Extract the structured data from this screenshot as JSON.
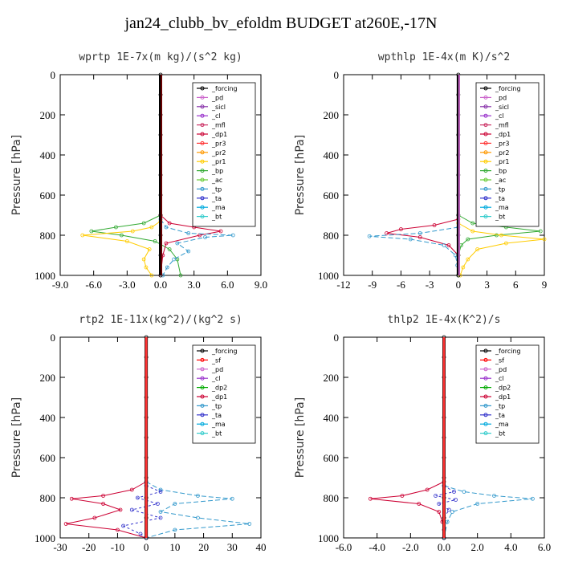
{
  "title": "jan24_clubb_bv_efoldm  BUDGET at260E,-17N",
  "colors": {
    "_forcing": "#000000",
    "_pd": "#cc66cc",
    "_sicl": "#8833aa",
    "_cl": "#9933cc",
    "_mfl": "#cc3366",
    "_dp1": "#cc0033",
    "_pr3": "#ff3333",
    "_pr2": "#ff9900",
    "_pr1": "#ffcc00",
    "_bp": "#33aa33",
    "_ac": "#66cc33",
    "_tp": "#3399cc",
    "_ta": "#3333cc",
    "_ma": "#00aadd",
    "_bt": "#33cccc",
    "_sf": "#ff0000",
    "_dp2": "#00aa00"
  },
  "chart_data": [
    {
      "type": "line",
      "title": "wprtp  1E-7x(m kg)/(s^2 kg)",
      "ylabel": "Pressure [hPa]",
      "xlim": [
        -9,
        9
      ],
      "ylim": [
        0,
        1000
      ],
      "y_inverted": true,
      "xticks": [
        "-9.0",
        "-6.0",
        "-3.0",
        "0.0",
        "3.0",
        "6.0",
        "9.0"
      ],
      "yticks": [
        "0",
        "200",
        "400",
        "600",
        "800",
        "1000"
      ],
      "legend": [
        "_forcing",
        "_pd",
        "_sicl",
        "_cl",
        "_mfl",
        "_dp1",
        "_pr3",
        "_pr2",
        "_pr1",
        "_bp",
        "_ac",
        "_tp",
        "_ta",
        "_ma",
        "_bt"
      ],
      "legend_position": "top-right",
      "series": [
        {
          "name": "_bp",
          "y": [
            700,
            740,
            760,
            780,
            800,
            830,
            870,
            920,
            1000
          ],
          "x": [
            0,
            -1.5,
            -4.0,
            -6.2,
            -3.5,
            -0.5,
            0.8,
            1.5,
            1.8
          ]
        },
        {
          "name": "_pr1",
          "y": [
            730,
            760,
            780,
            800,
            830,
            870,
            920,
            960,
            1000
          ],
          "x": [
            0,
            -0.8,
            -2.5,
            -7.0,
            -3.0,
            -1.0,
            -1.5,
            -1.3,
            -0.8
          ]
        },
        {
          "name": "_dp1",
          "y": [
            700,
            740,
            760,
            780,
            800,
            840,
            900,
            1000
          ],
          "x": [
            0,
            0.8,
            3.0,
            5.4,
            3.5,
            0.5,
            0.2,
            0
          ]
        },
        {
          "name": "_tp",
          "y": [
            720,
            760,
            790,
            800,
            810,
            840,
            880,
            920,
            960,
            1000
          ],
          "x": [
            0,
            0.5,
            2.5,
            6.5,
            4.0,
            1.5,
            2.5,
            1.2,
            0.6,
            0.2
          ]
        },
        {
          "name": "_forcing",
          "y": [
            0,
            100,
            200,
            300,
            400,
            500,
            600,
            700,
            800,
            900,
            1000
          ],
          "x": [
            0,
            0,
            0,
            0,
            0,
            0,
            0,
            0,
            0,
            0,
            0
          ]
        }
      ]
    },
    {
      "type": "line",
      "title": "wpthlp  1E-4x(m K)/s^2",
      "ylabel": "Pressure [hPa]",
      "xlim": [
        -12,
        9
      ],
      "ylim": [
        0,
        1000
      ],
      "y_inverted": true,
      "xticks": [
        "-12",
        "-9",
        "-6",
        "-3",
        "0",
        "3",
        "6",
        "9"
      ],
      "yticks": [
        "0",
        "200",
        "400",
        "600",
        "800",
        "1000"
      ],
      "legend": [
        "_forcing",
        "_pd",
        "_sicl",
        "_cl",
        "_mfl",
        "_dp1",
        "_pr3",
        "_pr2",
        "_pr1",
        "_bp",
        "_ac",
        "_tp",
        "_ta",
        "_ma",
        "_bt"
      ],
      "legend_position": "top-right",
      "series": [
        {
          "name": "_dp1",
          "y": [
            720,
            750,
            770,
            790,
            810,
            850,
            900,
            1000
          ],
          "x": [
            0,
            -2.5,
            -6.0,
            -7.5,
            -4.0,
            -1.0,
            0,
            0
          ]
        },
        {
          "name": "_tp",
          "y": [
            760,
            790,
            805,
            820,
            850,
            900,
            950,
            1000
          ],
          "x": [
            0,
            -4.0,
            -9.3,
            -5.0,
            -1.5,
            -0.3,
            -0.1,
            0
          ]
        },
        {
          "name": "_bp",
          "y": [
            700,
            740,
            760,
            780,
            800,
            820,
            850,
            900,
            1000
          ],
          "x": [
            0,
            1.5,
            5.0,
            8.6,
            4.0,
            1.0,
            0.3,
            0,
            0
          ]
        },
        {
          "name": "_pr1",
          "y": [
            740,
            780,
            800,
            820,
            840,
            870,
            920,
            960,
            1000
          ],
          "x": [
            0,
            1.5,
            4.5,
            9.0,
            5.0,
            2.0,
            1.0,
            0.5,
            0.2
          ]
        },
        {
          "name": "_forcing",
          "y": [
            0,
            100,
            200,
            300,
            400,
            500,
            600,
            700,
            800,
            900,
            1000
          ],
          "x": [
            0,
            0,
            0,
            0,
            0,
            0,
            0,
            0,
            0,
            0,
            0
          ]
        }
      ]
    },
    {
      "type": "line",
      "title": "rtp2  1E-11x(kg^2)/(kg^2 s)",
      "ylabel": "Pressure [hPa]",
      "xlim": [
        -30,
        40
      ],
      "ylim": [
        0,
        1000
      ],
      "y_inverted": true,
      "xticks": [
        "-30",
        "-20",
        "-10",
        "0",
        "10",
        "20",
        "30",
        "40"
      ],
      "yticks": [
        "0",
        "200",
        "400",
        "600",
        "800",
        "1000"
      ],
      "legend": [
        "_forcing",
        "_sf",
        "_pd",
        "_cl",
        "_dp2",
        "_dp1",
        "_tp",
        "_ta",
        "_ma",
        "_bt"
      ],
      "legend_position": "top-right",
      "series": [
        {
          "name": "_dp1",
          "y": [
            720,
            760,
            790,
            805,
            830,
            860,
            900,
            930,
            960,
            1000
          ],
          "x": [
            0,
            -5,
            -15,
            -26,
            -15,
            -9,
            -18,
            -28,
            -10,
            0
          ]
        },
        {
          "name": "_tp",
          "y": [
            720,
            760,
            790,
            805,
            830,
            870,
            900,
            930,
            960,
            1000
          ],
          "x": [
            0,
            5,
            18,
            30,
            10,
            5,
            18,
            36,
            10,
            0
          ]
        },
        {
          "name": "_ta",
          "y": [
            740,
            770,
            800,
            830,
            860,
            900,
            940,
            980,
            1000
          ],
          "x": [
            0,
            5,
            -3,
            4,
            -5,
            5,
            -8,
            -2,
            0
          ]
        },
        {
          "name": "_forcing",
          "y": [
            0,
            100,
            200,
            300,
            400,
            500,
            600,
            700,
            800,
            900,
            1000
          ],
          "x": [
            0,
            0,
            0,
            0,
            0,
            0,
            0,
            0,
            0,
            0,
            0
          ]
        }
      ]
    },
    {
      "type": "line",
      "title": "thlp2  1E-4x(K^2)/s",
      "ylabel": "Pressure [hPa]",
      "xlim": [
        -6,
        6
      ],
      "ylim": [
        0,
        1000
      ],
      "y_inverted": true,
      "xticks": [
        "-6.0",
        "-4.0",
        "-2.0",
        "0.0",
        "2.0",
        "4.0",
        "6.0"
      ],
      "yticks": [
        "0",
        "200",
        "400",
        "600",
        "800",
        "1000"
      ],
      "legend": [
        "_forcing",
        "_sf",
        "_pd",
        "_cl",
        "_dp2",
        "_dp1",
        "_tp",
        "_ta",
        "_ma",
        "_bt"
      ],
      "legend_position": "top-right",
      "series": [
        {
          "name": "_dp1",
          "y": [
            720,
            760,
            790,
            805,
            830,
            870,
            920,
            960,
            1000
          ],
          "x": [
            0,
            -1.0,
            -2.5,
            -4.4,
            -1.5,
            -0.3,
            -0.1,
            0,
            0
          ]
        },
        {
          "name": "_tp",
          "y": [
            740,
            770,
            790,
            805,
            830,
            870,
            920,
            1000
          ],
          "x": [
            0,
            1.2,
            3.0,
            5.3,
            2.0,
            0.5,
            0.2,
            0
          ]
        },
        {
          "name": "_ta",
          "y": [
            740,
            770,
            790,
            810,
            830,
            860,
            900,
            1000
          ],
          "x": [
            0,
            0.6,
            -0.5,
            0.7,
            -0.3,
            0.3,
            0,
            0
          ]
        },
        {
          "name": "_forcing",
          "y": [
            0,
            100,
            200,
            300,
            400,
            500,
            600,
            700,
            800,
            900,
            1000
          ],
          "x": [
            0,
            0,
            0,
            0,
            0,
            0,
            0,
            0,
            0,
            0,
            0
          ]
        }
      ]
    }
  ]
}
